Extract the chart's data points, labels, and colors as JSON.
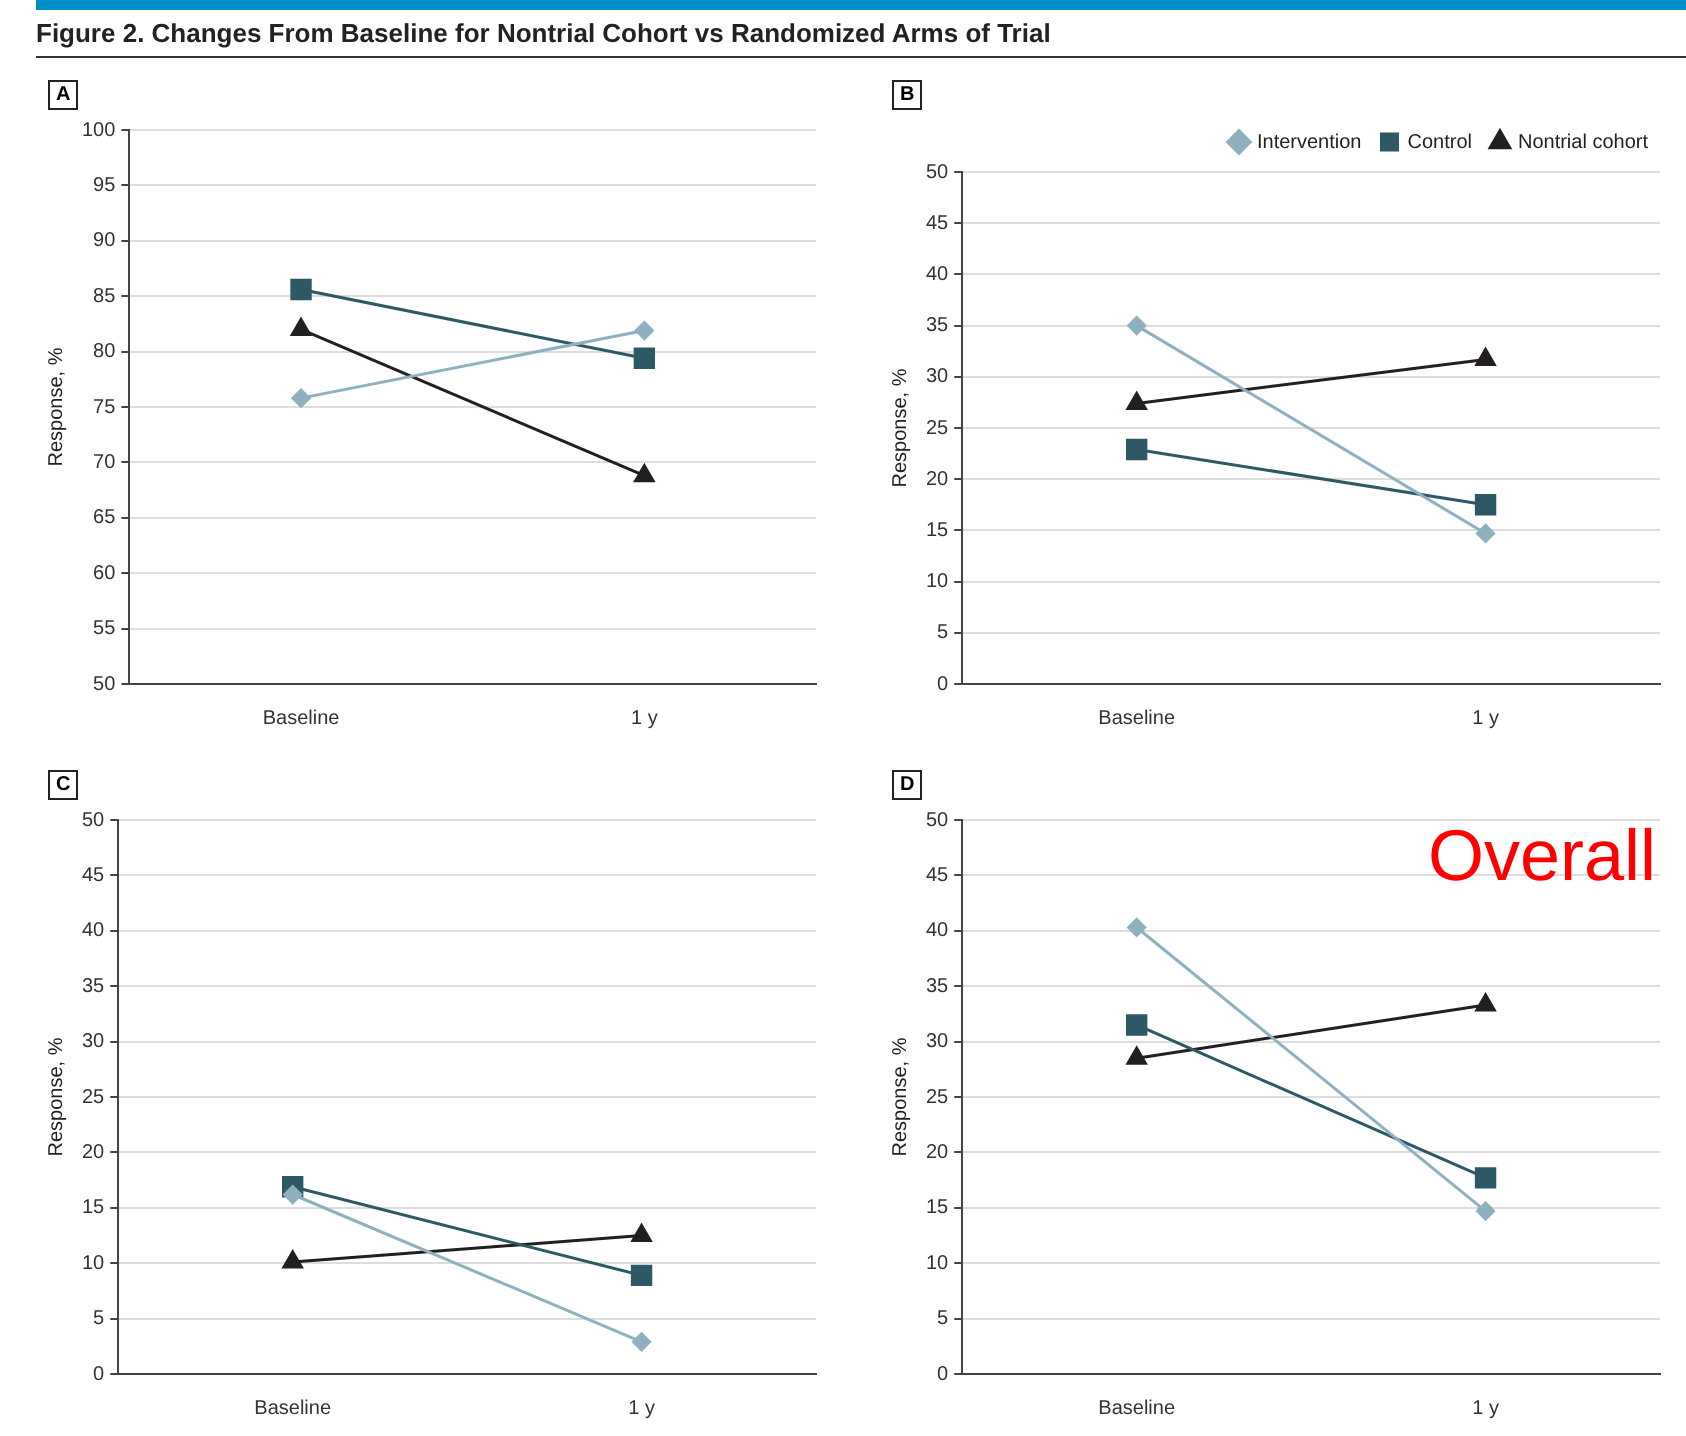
{
  "chart_data": [
    {
      "type": "line",
      "title": "Figure 2. Changes From Baseline for Nontrial Cohort vs Randomized Arms of Trial",
      "subtitle": "A",
      "ylabel": "Response, %",
      "categories": [
        "Baseline",
        "1 y"
      ],
      "ylim": [
        50,
        100
      ],
      "yticks": [
        50,
        55,
        60,
        65,
        70,
        75,
        80,
        85,
        90,
        95,
        100
      ],
      "grid": "y",
      "legend": false,
      "series": [
        {
          "color": "#8fb0bf",
          "marker": "diamond",
          "values": [
            75.8,
            81.9
          ]
        },
        {
          "color": "#2d5866",
          "marker": "square",
          "values": [
            85.6,
            79.4
          ]
        },
        {
          "color": "#231f20",
          "marker": "triangle",
          "values": [
            82,
            68.8
          ]
        }
      ]
    },
    {
      "type": "line",
      "subtitle": "B",
      "ylabel": "Response, %",
      "categories": [
        "Baseline",
        "1 y"
      ],
      "ylim": [
        0,
        50
      ],
      "yticks": [
        0,
        5,
        10,
        15,
        20,
        25,
        30,
        35,
        40,
        45,
        50
      ],
      "grid": "y",
      "legend": "top right",
      "series": [
        {
          "name": "Intervention",
          "color": "#8fb0bf",
          "marker": "diamond",
          "values": [
            35,
            14.7
          ]
        },
        {
          "name": "Control",
          "color": "#2d5866",
          "marker": "square",
          "values": [
            22.9,
            17.5
          ]
        },
        {
          "name": "Nontrial cohort",
          "color": "#231f20",
          "marker": "triangle",
          "values": [
            27.4,
            31.7
          ]
        }
      ]
    },
    {
      "type": "line",
      "subtitle": "C",
      "ylabel": "Response, %",
      "categories": [
        "Baseline",
        "1 y"
      ],
      "ylim": [
        0,
        50
      ],
      "yticks": [
        0,
        5,
        10,
        15,
        20,
        25,
        30,
        35,
        40,
        45,
        50
      ],
      "grid": "y",
      "legend": false,
      "series": [
        {
          "color": "#8fb0bf",
          "marker": "diamond",
          "values": [
            16.2,
            2.9
          ]
        },
        {
          "color": "#2d5866",
          "marker": "square",
          "values": [
            16.9,
            8.9
          ]
        },
        {
          "color": "#231f20",
          "marker": "triangle",
          "values": [
            10.1,
            12.5
          ]
        }
      ]
    },
    {
      "type": "line",
      "subtitle": "D",
      "ylabel": "Response, %",
      "categories": [
        "Baseline",
        "1 y"
      ],
      "ylim": [
        0,
        50
      ],
      "yticks": [
        0,
        5,
        10,
        15,
        20,
        25,
        30,
        35,
        40,
        45,
        50
      ],
      "grid": "y",
      "legend": false,
      "annotations": [
        "Overall"
      ],
      "series": [
        {
          "color": "#8fb0bf",
          "marker": "diamond",
          "values": [
            40.3,
            14.7
          ]
        },
        {
          "color": "#2d5866",
          "marker": "square",
          "values": [
            31.5,
            17.7
          ]
        },
        {
          "color": "#231f20",
          "marker": "triangle",
          "values": [
            28.5,
            33.3
          ]
        }
      ]
    }
  ]
}
